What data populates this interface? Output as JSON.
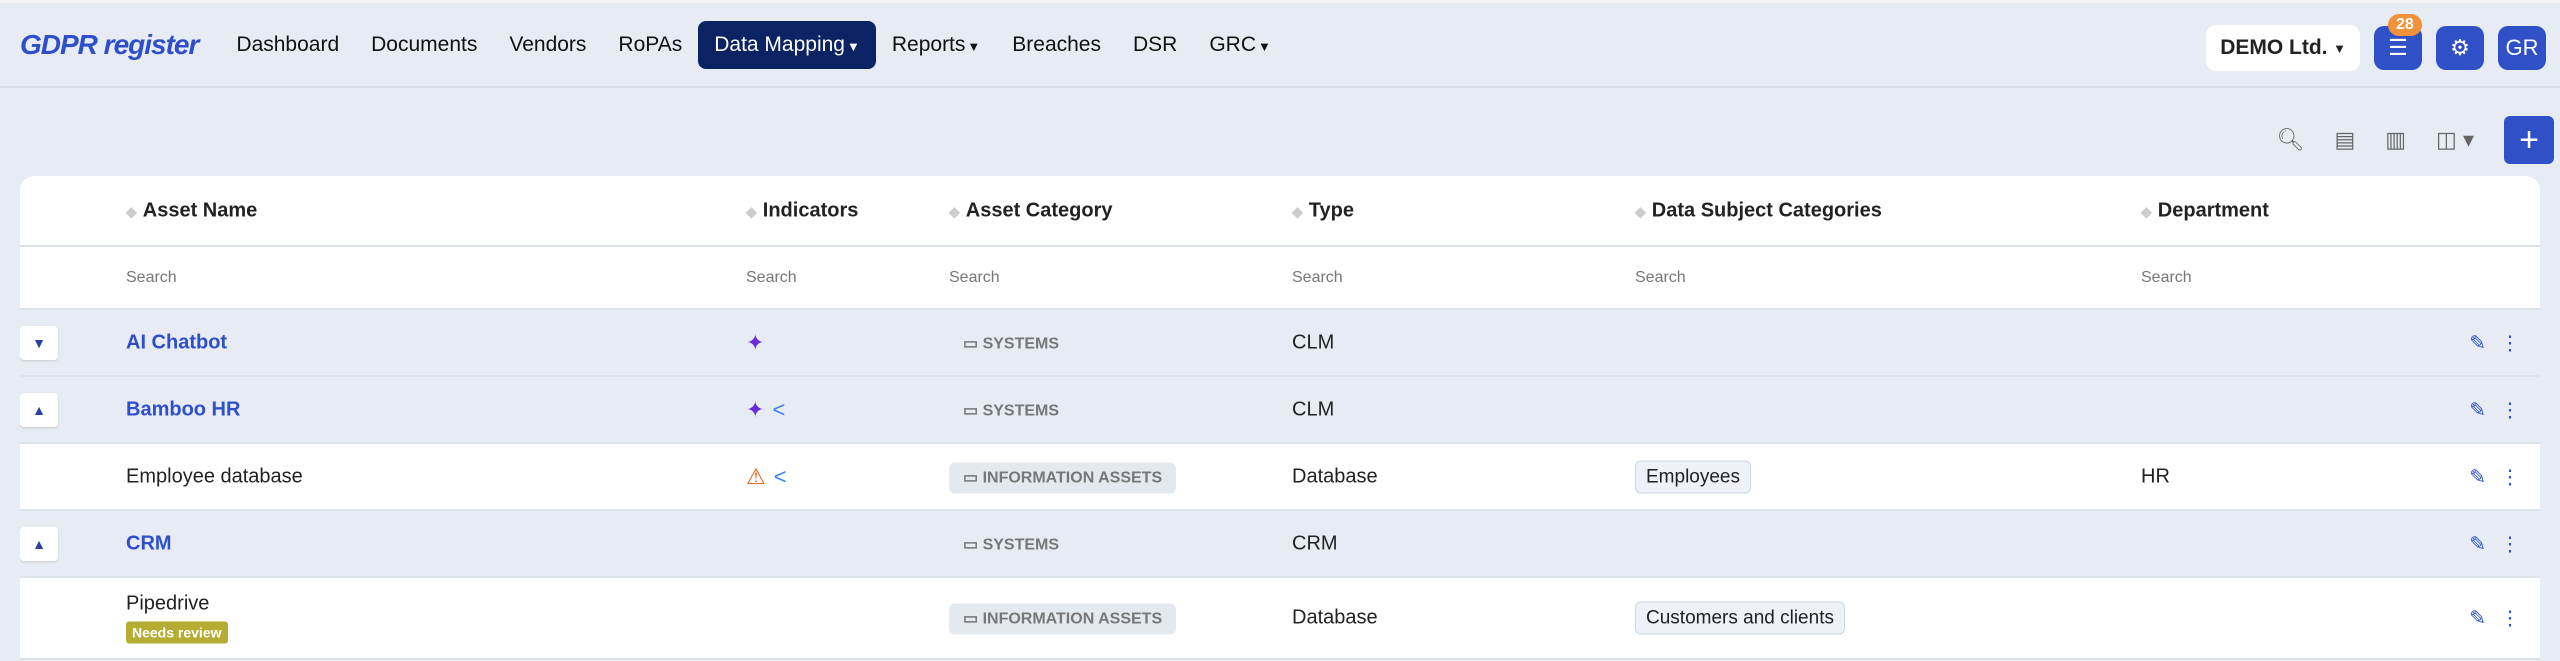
{
  "app": {
    "logo": "GDPR register"
  },
  "nav": [
    {
      "label": "Dashboard"
    },
    {
      "label": "Documents"
    },
    {
      "label": "Vendors"
    },
    {
      "label": "RoPAs"
    },
    {
      "label": "Data Mapping",
      "active": true,
      "dropdown": true
    },
    {
      "label": "Reports",
      "dropdown": true
    },
    {
      "label": "Breaches"
    },
    {
      "label": "DSR"
    },
    {
      "label": "GRC",
      "dropdown": true
    }
  ],
  "header": {
    "org": "DEMO Ltd.",
    "tasks_count": "28",
    "user_initials": "GR"
  },
  "colors": {
    "accent": "#3050c8",
    "nav_active": "#0b2263",
    "badge": "#f0923a",
    "needs_review": "#b5ad32"
  },
  "table": {
    "columns": [
      "Asset Name",
      "Indicators",
      "Asset Category",
      "Type",
      "Data Subject Categories",
      "Department"
    ],
    "search_placeholder": "Search",
    "rows": [
      {
        "name": "AI Chatbot",
        "group": true,
        "expanded": true,
        "indicators": [
          "sparkles-icon"
        ],
        "category": "SYSTEMS",
        "type": "CLM",
        "dsc": "",
        "department": ""
      },
      {
        "name": "Bamboo HR",
        "group": true,
        "expanded": false,
        "indicators": [
          "sparkles-icon",
          "share-icon"
        ],
        "category": "SYSTEMS",
        "type": "CLM",
        "dsc": "",
        "department": ""
      },
      {
        "name": "Employee database",
        "group": false,
        "indicators": [
          "warning-icon",
          "share-icon"
        ],
        "category": "INFORMATION ASSETS",
        "type": "Database",
        "dsc": "Employees",
        "department": "HR"
      },
      {
        "name": "CRM",
        "group": true,
        "expanded": false,
        "indicators": [],
        "category": "SYSTEMS",
        "type": "CRM",
        "dsc": "",
        "department": ""
      },
      {
        "name": "Pipedrive",
        "group": false,
        "badge": "Needs review",
        "indicators": [],
        "category": "INFORMATION ASSETS",
        "type": "Database",
        "dsc": "Customers and clients",
        "department": ""
      }
    ]
  }
}
